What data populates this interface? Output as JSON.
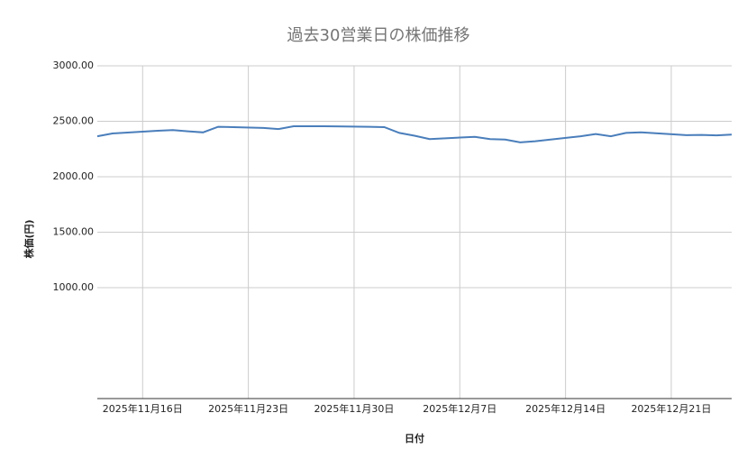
{
  "chart_data": {
    "type": "line",
    "title": "過去30営業日の株価推移",
    "x_label": "日付",
    "y_label": "株価(円)",
    "x": [
      "2025-11-13",
      "2025-11-14",
      "2025-11-17",
      "2025-11-18",
      "2025-11-19",
      "2025-11-20",
      "2025-11-21",
      "2025-11-24",
      "2025-11-25",
      "2025-11-26",
      "2025-11-27",
      "2025-11-28",
      "2025-12-01",
      "2025-12-02",
      "2025-12-03",
      "2025-12-04",
      "2025-12-05",
      "2025-12-08",
      "2025-12-09",
      "2025-12-10",
      "2025-12-11",
      "2025-12-12",
      "2025-12-15",
      "2025-12-16",
      "2025-12-17",
      "2025-12-18",
      "2025-12-19",
      "2025-12-22",
      "2025-12-23",
      "2025-12-24",
      "2025-12-25"
    ],
    "series": [
      {
        "name": "株価",
        "color": "#4a7ebb",
        "values": [
          2365,
          2390,
          2415,
          2420,
          2410,
          2400,
          2450,
          2440,
          2430,
          2455,
          2455,
          2455,
          2450,
          2447,
          2395,
          2370,
          2340,
          2360,
          2340,
          2335,
          2310,
          2320,
          2365,
          2385,
          2365,
          2395,
          2400,
          2375,
          2377,
          2373,
          2380
        ]
      }
    ],
    "xlim": [
      "2025-11-13",
      "2025-12-25"
    ],
    "xticks": [
      {
        "value": "2025-11-16",
        "label": "2025年11月16日"
      },
      {
        "value": "2025-11-23",
        "label": "2025年11月23日"
      },
      {
        "value": "2025-11-30",
        "label": "2025年11月30日"
      },
      {
        "value": "2025-12-07",
        "label": "2025年12月7日"
      },
      {
        "value": "2025-12-14",
        "label": "2025年12月14日"
      },
      {
        "value": "2025-12-21",
        "label": "2025年12月21日"
      }
    ],
    "ylim": [
      0,
      3000
    ],
    "yticks": [
      {
        "value": 1000,
        "label": "1000.00"
      },
      {
        "value": 1500,
        "label": "1500.00"
      },
      {
        "value": 2000,
        "label": "2000.00"
      },
      {
        "value": 2500,
        "label": "2500.00"
      },
      {
        "value": 3000,
        "label": "3000.00"
      }
    ],
    "grid": true
  }
}
